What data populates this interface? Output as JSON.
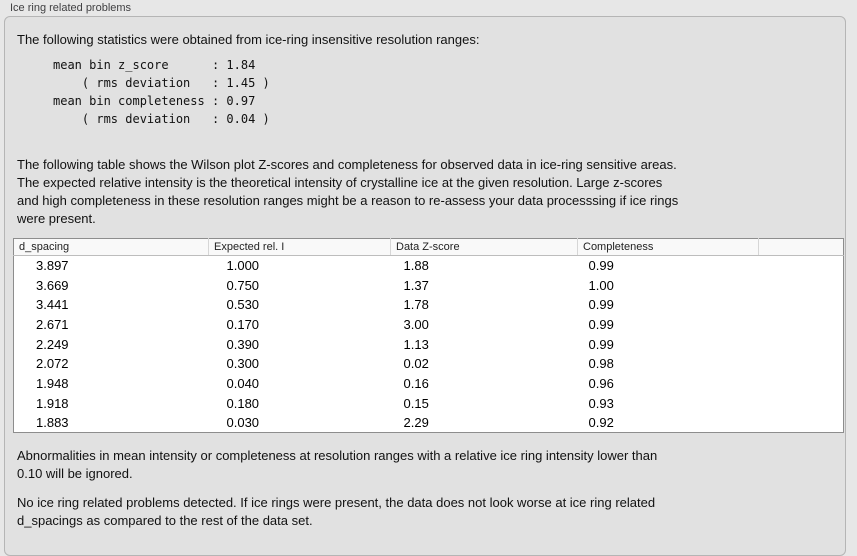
{
  "panel": {
    "title": "Ice ring related problems"
  },
  "intro": "The following statistics were obtained from ice-ring insensitive resolution ranges:",
  "stats_block": "mean bin z_score      : 1.84\n    ( rms deviation   : 1.45 )\nmean bin completeness : 0.97\n    ( rms deviation   : 0.04 )",
  "table_description": "The following table shows the Wilson plot Z-scores and completeness for observed data in ice-ring sensitive areas.\nThe expected relative intensity is the theoretical intensity of crystalline ice at the given resolution. Large z-scores\nand high completeness in these resolution ranges might be a reason to re-assess your data processsing if ice rings\nwere present.",
  "table": {
    "headers": [
      "d_spacing",
      "Expected rel. I",
      "Data Z-score",
      "Completeness",
      ""
    ],
    "rows": [
      [
        "3.897",
        "1.000",
        "1.88",
        "0.99"
      ],
      [
        "3.669",
        "0.750",
        "1.37",
        "1.00"
      ],
      [
        "3.441",
        "0.530",
        "1.78",
        "0.99"
      ],
      [
        "2.671",
        "0.170",
        "3.00",
        "0.99"
      ],
      [
        "2.249",
        "0.390",
        "1.13",
        "0.99"
      ],
      [
        "2.072",
        "0.300",
        "0.02",
        "0.98"
      ],
      [
        "1.948",
        "0.040",
        "0.16",
        "0.96"
      ],
      [
        "1.918",
        "0.180",
        "0.15",
        "0.93"
      ],
      [
        "1.883",
        "0.030",
        "2.29",
        "0.92"
      ]
    ]
  },
  "note_ignore": "Abnormalities in mean intensity or completeness at resolution ranges with a relative ice ring intensity lower than\n0.10 will be ignored.",
  "conclusion": "No ice ring related problems detected. If ice rings were present, the data does not look worse at ice ring related\nd_spacings as compared to the rest of the data set.",
  "colors": {
    "page_background": "#e7e7e7",
    "groupbox_background": "#e1e1e1",
    "groupbox_border": "#b5b5b5",
    "table_border": "#8d8d8d",
    "table_header_background": "#f9f9f9",
    "text": "#111111"
  }
}
